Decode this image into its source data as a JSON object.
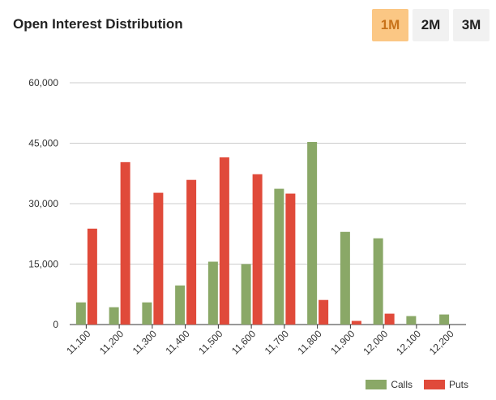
{
  "header": {
    "title": "Open Interest Distribution",
    "ranges": [
      {
        "label": "1M",
        "active": true
      },
      {
        "label": "2M",
        "active": false
      },
      {
        "label": "3M",
        "active": false
      }
    ]
  },
  "colors": {
    "calls": "#8aa867",
    "puts": "#e04a3a",
    "active_button": "#fbc784",
    "grid": "#cccccc"
  },
  "chart_data": {
    "type": "bar",
    "title": "",
    "xlabel": "",
    "ylabel": "",
    "ylim": [
      0,
      60000
    ],
    "yticks": [
      0,
      15000,
      30000,
      45000,
      60000
    ],
    "ytick_labels": [
      "0",
      "15,000",
      "30,000",
      "45,000",
      "60,000"
    ],
    "categories": [
      "11,100",
      "11,200",
      "11,300",
      "11,400",
      "11,500",
      "11,600",
      "11,700",
      "11,800",
      "11,900",
      "12,000",
      "12,100",
      "12,200"
    ],
    "series": [
      {
        "name": "Calls",
        "color": "#8aa867",
        "values": [
          5500,
          4300,
          5500,
          9700,
          15600,
          15000,
          33700,
          45300,
          23000,
          21400,
          2100,
          2500
        ]
      },
      {
        "name": "Puts",
        "color": "#e04a3a",
        "values": [
          23800,
          40300,
          32700,
          35900,
          41500,
          37300,
          32500,
          6100,
          900,
          2700,
          0,
          0
        ]
      }
    ],
    "grid": true,
    "legend_position": "bottom-right"
  }
}
